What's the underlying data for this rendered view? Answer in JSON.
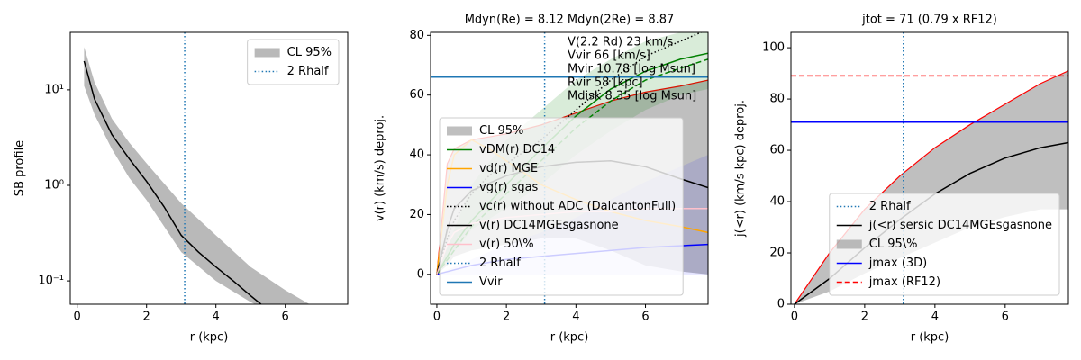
{
  "chart_data": [
    {
      "type": "line",
      "xlabel": "r (kpc)",
      "ylabel": "SB profile",
      "log_y": true,
      "xlim": [
        -0.2,
        7.8
      ],
      "ylim": [
        0.057,
        40
      ],
      "xticks": [
        0,
        2,
        4,
        6
      ],
      "yticks": [
        {
          "value": 0.1,
          "label": "10⁻¹"
        },
        {
          "value": 1,
          "label": "10⁰"
        },
        {
          "value": 10,
          "label": "10¹"
        }
      ],
      "legend_loc": "upper right",
      "layers": [
        {
          "kind": "band",
          "name": "CL 95%",
          "color": "#808080",
          "alpha": 0.55,
          "x": [
            0.2,
            0.5,
            1,
            1.5,
            2,
            3,
            4,
            5,
            6,
            6.7
          ],
          "lower": [
            11,
            5.5,
            2.4,
            1.2,
            0.7,
            0.2,
            0.1,
            0.06,
            0.04,
            0.03
          ],
          "upper": [
            28,
            12,
            5,
            2.8,
            1.7,
            0.65,
            0.3,
            0.14,
            0.08,
            0.057
          ]
        },
        {
          "kind": "line",
          "color": "#000000",
          "dash": "solid",
          "x": [
            0.2,
            0.5,
            1,
            1.5,
            2,
            2.5,
            3,
            3.5,
            4,
            4.5,
            5,
            5.3
          ],
          "values": [
            20,
            8,
            3.4,
            1.9,
            1.1,
            0.6,
            0.3,
            0.2,
            0.14,
            0.1,
            0.07,
            0.057
          ]
        },
        {
          "kind": "vline",
          "name": "2 Rhalf",
          "color": "#1f77b4",
          "dash": "dotted",
          "value": 3.1
        }
      ]
    },
    {
      "type": "line",
      "title": "Mdyn(Re) = 8.12  Mdyn(2Re) = 8.87",
      "xlabel": "r (kpc)",
      "ylabel": "v(r) (km/s) deproj.",
      "xlim": [
        -0.18,
        7.8
      ],
      "ylim": [
        -10,
        81
      ],
      "xticks": [
        0,
        2,
        4,
        6
      ],
      "yticks": [
        0,
        20,
        40,
        60,
        80
      ],
      "legend_loc": "lower left",
      "annotations": [
        "V(2.2 Rd) 23 km/s",
        "Vvir 66 [km/s]",
        "Mvir 10.78 [log Msun]",
        "Rvir 58 [kpc]",
        "Mdisk 8.35 [log Msun]"
      ],
      "layers": [
        {
          "kind": "band",
          "name": "CL 95%",
          "color": "#808080",
          "alpha": 0.5,
          "edge_color": "#ff0000",
          "x": [
            0,
            0.3,
            0.5,
            1,
            1.5,
            2,
            3,
            4,
            5,
            6,
            7,
            7.8
          ],
          "lower": [
            0,
            3,
            6,
            8,
            9,
            10,
            12,
            12,
            8,
            3,
            1,
            0
          ],
          "upper": [
            0,
            37,
            42,
            45,
            46,
            47,
            50,
            54,
            58,
            61,
            63,
            65
          ]
        },
        {
          "kind": "band",
          "color": "#008000",
          "alpha": 0.15,
          "x": [
            0,
            1,
            2,
            3,
            4,
            5,
            6,
            7,
            7.8
          ],
          "lower": [
            0,
            15,
            22,
            30,
            40,
            48,
            55,
            60,
            62
          ],
          "upper": [
            0,
            30,
            45,
            55,
            65,
            72,
            78,
            81,
            82
          ]
        },
        {
          "kind": "band",
          "color": "#0000ff",
          "alpha": 0.1,
          "x": [
            0,
            1,
            2,
            3,
            4,
            5,
            6,
            7,
            7.8
          ],
          "lower": [
            0,
            0,
            0,
            0,
            0,
            0,
            0,
            0,
            0
          ],
          "upper": [
            0,
            5,
            10,
            14,
            19,
            25,
            31,
            36,
            40
          ]
        },
        {
          "kind": "line",
          "name": "vDM(r) DC14",
          "color": "#008000",
          "dash": "solid",
          "x": [
            0,
            0.3,
            0.5,
            1,
            1.5,
            2,
            3,
            4,
            5,
            6,
            7,
            7.8
          ],
          "values": [
            0,
            6,
            10,
            18,
            24,
            30,
            42,
            53,
            62,
            68,
            72,
            74
          ]
        },
        {
          "kind": "line",
          "color": "#008000",
          "dash": "dashed",
          "x": [
            0,
            1,
            2,
            3,
            4,
            5,
            6,
            7,
            7.8
          ],
          "values": [
            0,
            16,
            27,
            38,
            49,
            58,
            65,
            69,
            72
          ]
        },
        {
          "kind": "line",
          "name": "vd(r) MGE",
          "color": "#ffa500",
          "dash": "solid",
          "x": [
            0,
            0.3,
            0.5,
            1,
            1.5,
            2,
            3,
            4,
            5,
            6,
            7,
            7.8
          ],
          "values": [
            0,
            30,
            40,
            45,
            42,
            38,
            30,
            25,
            21,
            18,
            16,
            14
          ]
        },
        {
          "kind": "line",
          "name": "vg(r) sgas",
          "color": "#0000ff",
          "dash": "solid",
          "x": [
            0,
            1,
            2,
            4,
            6,
            7.8
          ],
          "values": [
            0,
            3,
            5,
            7,
            9,
            10
          ]
        },
        {
          "kind": "line",
          "name": "vc(r) without ADC (DalcantonFull)",
          "color": "#000000",
          "dash": "dotted",
          "x": [
            0,
            0.3,
            0.5,
            1,
            1.5,
            2,
            3,
            4,
            5,
            6,
            7,
            7.8
          ],
          "values": [
            0,
            12,
            18,
            27,
            33,
            37,
            45,
            55,
            65,
            73,
            78,
            82
          ]
        },
        {
          "kind": "line",
          "name": "v(r) DC14MGEsgasnone",
          "color": "#000000",
          "dash": "solid",
          "x": [
            0,
            0.3,
            0.5,
            1,
            2,
            3,
            4,
            5,
            6,
            7,
            7.8
          ],
          "values": [
            0,
            15,
            22,
            28,
            33,
            36,
            37.5,
            38,
            36,
            32,
            29
          ]
        },
        {
          "kind": "line",
          "name": "v(r) 50\\%",
          "color": "#ffc0cb",
          "dash": "solid",
          "x": [
            0,
            0.3,
            0.5,
            1,
            2,
            3,
            4,
            5,
            6,
            7,
            7.8
          ],
          "values": [
            0,
            10,
            14,
            17,
            19,
            20,
            21,
            21,
            22,
            22,
            22
          ]
        },
        {
          "kind": "vline",
          "name": "2 Rhalf",
          "color": "#1f77b4",
          "dash": "dotted",
          "value": 3.1
        },
        {
          "kind": "hline",
          "name": "Vvir",
          "color": "#1f77b4",
          "dash": "solid",
          "value": 66
        }
      ]
    },
    {
      "type": "line",
      "title": "jtot = 71 (0.79 x RF12)",
      "xlabel": "r (kpc)",
      "ylabel": "j(<r) (km/s kpc) deproj.",
      "xlim": [
        -0.1,
        7.8
      ],
      "ylim": [
        0,
        106
      ],
      "xticks": [
        0,
        2,
        4,
        6
      ],
      "yticks": [
        0,
        20,
        40,
        60,
        80,
        100
      ],
      "legend_loc": "lower right",
      "layers": [
        {
          "kind": "vline",
          "name": "2 Rhalf",
          "color": "#1f77b4",
          "dash": "dotted",
          "value": 3.1
        },
        {
          "kind": "line",
          "name": "j(<r) sersic DC14MGEsgasnone",
          "color": "#000000",
          "dash": "solid",
          "x": [
            0,
            1,
            2,
            3,
            4,
            5,
            6,
            7,
            7.8
          ],
          "values": [
            0,
            10,
            22,
            33,
            43,
            51,
            57,
            61,
            63
          ]
        },
        {
          "kind": "band",
          "name": "CL 95\\%",
          "color": "#808080",
          "alpha": 0.5,
          "edge_color": "#ff0000",
          "x": [
            0,
            1,
            2,
            3,
            4,
            5,
            6,
            7,
            7.8
          ],
          "lower": [
            0,
            5,
            12,
            18,
            24,
            30,
            34,
            37,
            37
          ],
          "upper": [
            0,
            20,
            37,
            50,
            61,
            70,
            78,
            86,
            91
          ]
        },
        {
          "kind": "hline",
          "name": "jmax (3D)",
          "color": "#0000ff",
          "dash": "solid",
          "value": 71
        },
        {
          "kind": "hline",
          "name": "jmax (RF12)",
          "color": "#ff0000",
          "dash": "dashed",
          "value": 89
        }
      ]
    }
  ]
}
